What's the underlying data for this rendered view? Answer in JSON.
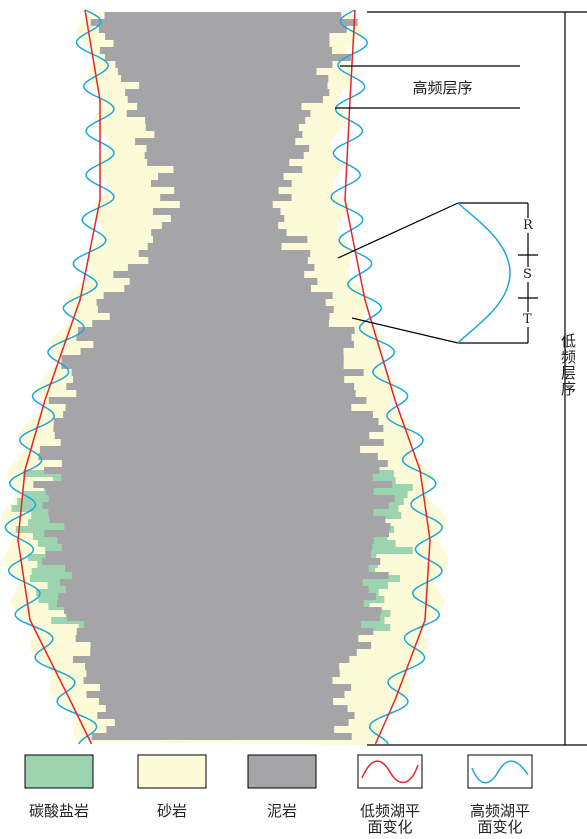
{
  "diagram": {
    "high_freq_sequence": "高频层序",
    "low_freq_sequence": "低频层序",
    "cycle_parts": [
      "R",
      "S",
      "T"
    ],
    "legend": [
      {
        "label": "碳酸盐岩"
      },
      {
        "label": "砂岩"
      },
      {
        "label": "泥岩"
      },
      {
        "label": "低频湖平面变化"
      },
      {
        "label": "高频湖平面变化"
      }
    ]
  }
}
